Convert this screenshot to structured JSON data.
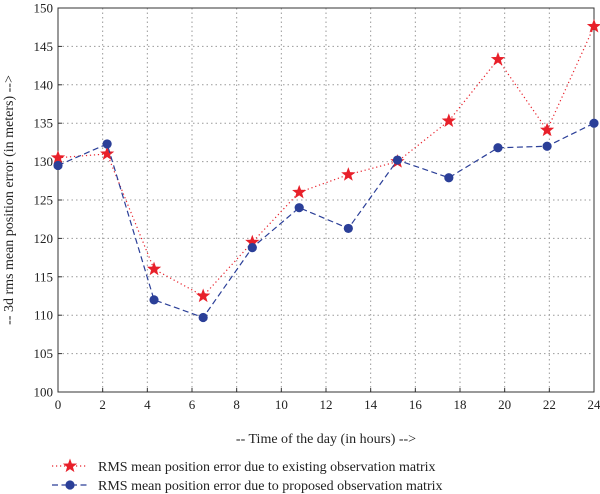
{
  "chart_data": {
    "type": "line",
    "title": "",
    "xlabel": "-- Time of the day (in hours) -->",
    "ylabel": "-- 3d rms mean position error (in meters) -->",
    "xlim": [
      0,
      24
    ],
    "ylim": [
      100,
      150
    ],
    "xticks": [
      0,
      2,
      4,
      6,
      8,
      10,
      12,
      14,
      16,
      18,
      20,
      22,
      24
    ],
    "yticks": [
      100,
      105,
      110,
      115,
      120,
      125,
      130,
      135,
      140,
      145,
      150
    ],
    "grid": true,
    "legend_position": "bottom",
    "series": [
      {
        "name": "RMS mean position error due to existing observation matrix",
        "color": "#e8202a",
        "line_style": "dotted",
        "marker": "star",
        "x": [
          0,
          2.2,
          4.3,
          6.5,
          8.7,
          10.8,
          13.0,
          15.2,
          17.5,
          19.7,
          21.9,
          24.0
        ],
        "y": [
          130.5,
          131.0,
          116.0,
          112.5,
          119.5,
          126.0,
          128.3,
          130.0,
          135.3,
          143.3,
          134.1,
          147.6
        ]
      },
      {
        "name": "RMS mean position error due to proposed observation matrix",
        "color": "#2b3f98",
        "line_style": "dashed",
        "marker": "circle",
        "x": [
          0,
          2.2,
          4.3,
          6.5,
          8.7,
          10.8,
          13.0,
          15.2,
          17.5,
          19.7,
          21.9,
          24.0
        ],
        "y": [
          129.5,
          132.3,
          112.0,
          109.7,
          118.8,
          124.0,
          121.3,
          130.2,
          127.9,
          131.8,
          132.0,
          135.0
        ]
      }
    ]
  }
}
